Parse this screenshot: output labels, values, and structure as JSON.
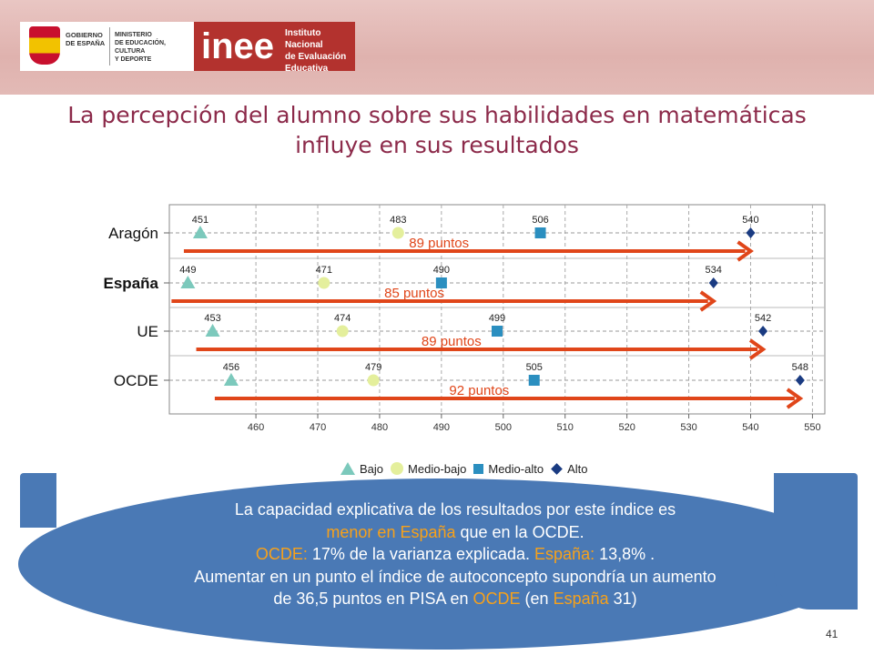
{
  "header": {
    "gov_text": "GOBIERNO\nDE ESPAÑA",
    "ministry_text": "MINISTERIO\nDE EDUCACIÓN, CULTURA\nY DEPORTE",
    "inee_logo": "inee",
    "inee_name": "Instituto Nacional\nde Evaluación\nEducativa"
  },
  "title_line1": "La percepción del alumno sobre sus habilidades en matemáticas",
  "title_line2": "influye en sus resultados",
  "chart_data": {
    "type": "scatter",
    "xlim": [
      446,
      552
    ],
    "x_ticks": [
      460,
      470,
      480,
      490,
      500,
      510,
      520,
      530,
      540,
      550
    ],
    "categories": [
      "Aragón",
      "España",
      "UE",
      "OCDE"
    ],
    "bold_category": "España",
    "grid": "dashed",
    "series": [
      {
        "name": "Bajo",
        "marker": "triangle",
        "color": "#7cc9bc",
        "values": [
          451,
          449,
          453,
          456
        ]
      },
      {
        "name": "Medio-bajo",
        "marker": "circle",
        "color": "#e4ef9c",
        "values": [
          483,
          471,
          474,
          479
        ]
      },
      {
        "name": "Medio-alto",
        "marker": "square",
        "color": "#2b8fc0",
        "values": [
          506,
          490,
          499,
          505
        ]
      },
      {
        "name": "Alto",
        "marker": "diamond",
        "color": "#1a3b82",
        "values": [
          540,
          534,
          542,
          548
        ]
      }
    ],
    "point_labels": [
      [
        "451",
        "483",
        "506",
        "540"
      ],
      [
        "449",
        "471",
        "490",
        "534"
      ],
      [
        "453",
        "474",
        "499",
        "542"
      ],
      [
        "456",
        "479",
        "505",
        "548"
      ]
    ],
    "arrows": [
      {
        "from": 451,
        "to": 540,
        "label": "89 puntos"
      },
      {
        "from": 449,
        "to": 534,
        "label": "85 puntos"
      },
      {
        "from": 453,
        "to": 542,
        "label": "89 puntos"
      },
      {
        "from": 456,
        "to": 548,
        "label": "92 puntos"
      }
    ],
    "arrow_color": "#e0461a",
    "legend_position": "bottom"
  },
  "caption": {
    "line1": "La  capacidad explicativa de los resultados por este índice es",
    "line2_orange": "menor en España",
    "line2_rest": " que en la OCDE.",
    "line3_orange1": "OCDE:",
    "line3_mid": " 17%  de la varianza explicada. ",
    "line3_orange2": "España:",
    "line3_end": "  13,8% .",
    "line4": "Aumentar en un punto el índice de autoconcepto supondría un aumento",
    "line5_start": "de 36,5 puntos en PISA  en ",
    "line5_orange1": "OCDE",
    "line5_mid": " (en ",
    "line5_orange2": "España",
    "line5_end": " 31)"
  },
  "page_number": "41"
}
